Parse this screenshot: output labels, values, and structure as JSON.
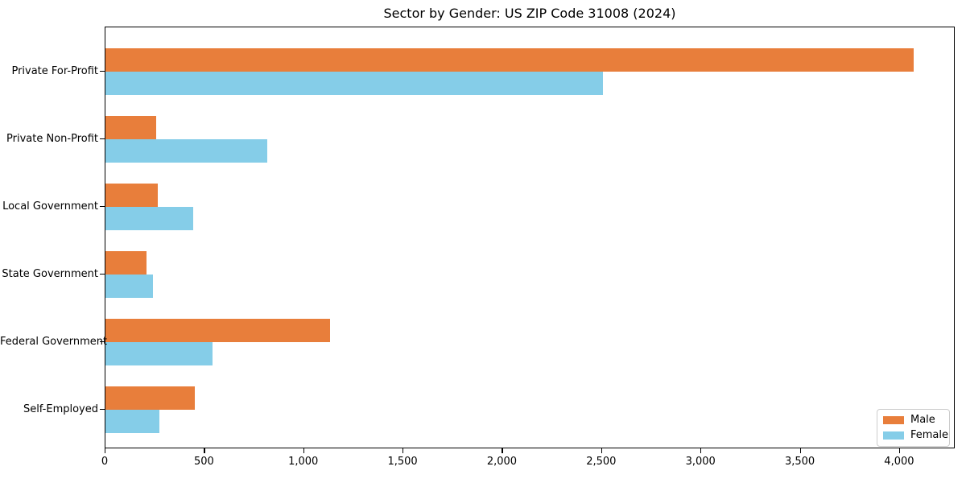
{
  "chart_data": {
    "type": "bar",
    "orientation": "horizontal",
    "title": "Sector by Gender: US ZIP Code 31008 (2024)",
    "categories": [
      "Private For-Profit",
      "Private Non-Profit",
      "Local Government",
      "State Government",
      "Federal Government",
      "Self-Employed"
    ],
    "series": [
      {
        "name": "Male",
        "color": "#e87e3b",
        "values": [
          4070,
          255,
          265,
          205,
          1130,
          450
        ]
      },
      {
        "name": "Female",
        "color": "#85cde8",
        "values": [
          2505,
          815,
          440,
          240,
          540,
          270
        ]
      }
    ],
    "xlabel": "",
    "ylabel": "",
    "xlim": [
      0,
      4280
    ],
    "xticks": [
      0,
      500,
      1000,
      1500,
      2000,
      2500,
      3000,
      3500,
      4000
    ],
    "xtick_labels": [
      "0",
      "500",
      "1,000",
      "1,500",
      "2,000",
      "2,500",
      "3,000",
      "3,500",
      "4,000"
    ],
    "grid": false,
    "legend_position": "lower right"
  }
}
